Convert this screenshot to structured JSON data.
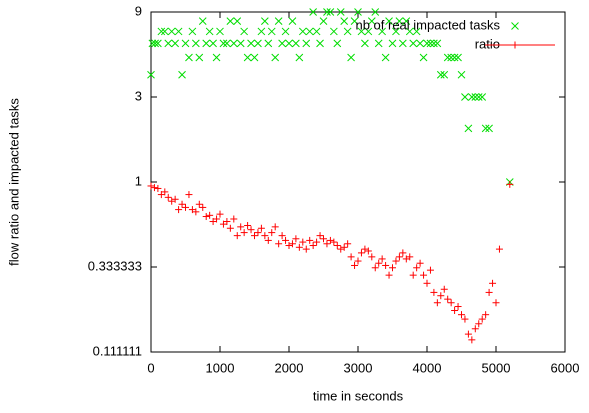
{
  "chart_data": {
    "type": "scatter",
    "xlabel": "time in seconds",
    "ylabel": "flow ratio and impacted tasks",
    "xlim": [
      0,
      6000
    ],
    "xticks": [
      0,
      1000,
      2000,
      3000,
      4000,
      5000,
      6000
    ],
    "ylim": [
      0.111111,
      9
    ],
    "yticks": [
      9,
      3,
      1,
      0.333333,
      0.111111
    ],
    "ylog": true,
    "legend": "top-right",
    "series": [
      {
        "name": "nb of real impacted tasks",
        "color": "#00dd00",
        "marker": "x",
        "x": [
          0,
          20,
          60,
          100,
          150,
          200,
          250,
          300,
          350,
          400,
          450,
          500,
          550,
          600,
          650,
          700,
          750,
          800,
          850,
          900,
          950,
          1000,
          1050,
          1100,
          1150,
          1200,
          1250,
          1300,
          1350,
          1400,
          1450,
          1500,
          1550,
          1600,
          1650,
          1700,
          1750,
          1800,
          1850,
          1900,
          1950,
          2000,
          2050,
          2100,
          2150,
          2200,
          2250,
          2300,
          2350,
          2400,
          2450,
          2500,
          2550,
          2600,
          2650,
          2700,
          2750,
          2800,
          2850,
          2900,
          2950,
          3000,
          3050,
          3100,
          3150,
          3200,
          3250,
          3300,
          3350,
          3400,
          3450,
          3500,
          3550,
          3600,
          3650,
          3700,
          3750,
          3800,
          3850,
          3900,
          3950,
          4000,
          4050,
          4100,
          4150,
          4200,
          4250,
          4300,
          4350,
          4400,
          4450,
          4500,
          4550,
          4600,
          4650,
          4700,
          4750,
          4800,
          4850,
          4900,
          5200
        ],
        "values": [
          4,
          6,
          6,
          6,
          7,
          7,
          6,
          7,
          6,
          7,
          4,
          6,
          5,
          7,
          6,
          5,
          8,
          6,
          7,
          6,
          5,
          7,
          6,
          6,
          8,
          6,
          8,
          6,
          7,
          5,
          6,
          5,
          6,
          7,
          8,
          6,
          7,
          5,
          8,
          6,
          7,
          6,
          8,
          6,
          5,
          7,
          6,
          7,
          9,
          7,
          6,
          8,
          9,
          9,
          7,
          6,
          9,
          8,
          7,
          5,
          8,
          9,
          7,
          6,
          7,
          8,
          9,
          6,
          7,
          5,
          8,
          6,
          7,
          8,
          6,
          8,
          7,
          6,
          7,
          6,
          5,
          6,
          6,
          6,
          6,
          4,
          4,
          5,
          5,
          5,
          5,
          4,
          3,
          2,
          3,
          3,
          3,
          3,
          2,
          2,
          1
        ]
      },
      {
        "name": "ratio",
        "color": "#ff0000",
        "marker": "+",
        "x": [
          0,
          50,
          100,
          150,
          200,
          250,
          300,
          350,
          400,
          450,
          500,
          550,
          600,
          650,
          700,
          750,
          800,
          850,
          900,
          950,
          1000,
          1050,
          1100,
          1150,
          1200,
          1250,
          1300,
          1350,
          1400,
          1450,
          1500,
          1550,
          1600,
          1650,
          1700,
          1750,
          1800,
          1850,
          1900,
          1950,
          2000,
          2050,
          2100,
          2150,
          2200,
          2250,
          2300,
          2350,
          2400,
          2450,
          2500,
          2550,
          2600,
          2650,
          2700,
          2750,
          2800,
          2850,
          2900,
          2950,
          3000,
          3050,
          3100,
          3150,
          3200,
          3250,
          3300,
          3350,
          3400,
          3450,
          3500,
          3550,
          3600,
          3650,
          3700,
          3750,
          3800,
          3850,
          3900,
          3950,
          4000,
          4050,
          4100,
          4150,
          4200,
          4250,
          4300,
          4350,
          4400,
          4450,
          4500,
          4550,
          4600,
          4650,
          4700,
          4750,
          4800,
          4850,
          4900,
          4950,
          5000,
          5050,
          5200
        ],
        "values": [
          0.95,
          0.93,
          0.92,
          0.85,
          0.88,
          0.82,
          0.78,
          0.8,
          0.7,
          0.75,
          0.72,
          0.85,
          0.7,
          0.68,
          0.75,
          0.72,
          0.64,
          0.65,
          0.6,
          0.62,
          0.66,
          0.58,
          0.6,
          0.55,
          0.62,
          0.5,
          0.56,
          0.52,
          0.57,
          0.54,
          0.5,
          0.52,
          0.55,
          0.5,
          0.47,
          0.52,
          0.56,
          0.45,
          0.5,
          0.47,
          0.44,
          0.45,
          0.48,
          0.43,
          0.46,
          0.42,
          0.47,
          0.44,
          0.46,
          0.5,
          0.48,
          0.45,
          0.47,
          0.46,
          0.44,
          0.42,
          0.43,
          0.45,
          0.38,
          0.34,
          0.36,
          0.4,
          0.42,
          0.41,
          0.38,
          0.33,
          0.35,
          0.37,
          0.34,
          0.3,
          0.33,
          0.36,
          0.38,
          0.4,
          0.37,
          0.38,
          0.3,
          0.33,
          0.35,
          0.3,
          0.27,
          0.32,
          0.24,
          0.21,
          0.23,
          0.25,
          0.22,
          0.21,
          0.19,
          0.2,
          0.18,
          0.17,
          0.14,
          0.13,
          0.15,
          0.16,
          0.17,
          0.18,
          0.24,
          0.27,
          0.21,
          0.42,
          0.97
        ]
      }
    ]
  }
}
